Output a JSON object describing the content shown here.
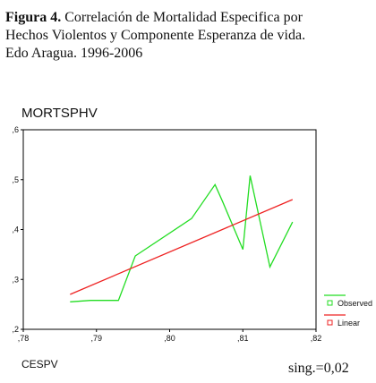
{
  "caption": {
    "label": "Figura 4.",
    "line1_rest": " Correlación de Mortalidad Especifica por",
    "line2": "Hechos Violentos  y Componente Esperanza de vida.",
    "line3": "Edo Aragua. 1996-2006"
  },
  "significance": "sing.=0,02",
  "colors": {
    "observed": "#22dd22",
    "linear": "#ee2222",
    "axis": "#000000"
  },
  "chart_data": {
    "type": "line",
    "ylabel": "MORTSPHV",
    "xlabel": "CESPV",
    "xlim": [
      0.78,
      0.82
    ],
    "ylim": [
      0.2,
      0.6
    ],
    "x_ticks": [
      {
        "value": 0.78,
        "label": ",78"
      },
      {
        "value": 0.79,
        "label": ",79"
      },
      {
        "value": 0.8,
        "label": ",80"
      },
      {
        "value": 0.81,
        "label": ",81"
      },
      {
        "value": 0.82,
        "label": ",82"
      }
    ],
    "y_ticks": [
      {
        "value": 0.2,
        "label": ",2"
      },
      {
        "value": 0.3,
        "label": ",3"
      },
      {
        "value": 0.4,
        "label": ",4"
      },
      {
        "value": 0.5,
        "label": ",5"
      },
      {
        "value": 0.6,
        "label": ",6"
      }
    ],
    "grid": false,
    "legend_position": "right",
    "series": [
      {
        "name": "Observed",
        "points": [
          {
            "x": 0.7864,
            "y": 0.255
          },
          {
            "x": 0.7892,
            "y": 0.258
          },
          {
            "x": 0.793,
            "y": 0.258
          },
          {
            "x": 0.7953,
            "y": 0.347
          },
          {
            "x": 0.803,
            "y": 0.422
          },
          {
            "x": 0.8062,
            "y": 0.49
          },
          {
            "x": 0.8072,
            "y": 0.457
          },
          {
            "x": 0.81,
            "y": 0.36
          },
          {
            "x": 0.811,
            "y": 0.508
          },
          {
            "x": 0.8137,
            "y": 0.325
          },
          {
            "x": 0.8168,
            "y": 0.415
          }
        ]
      },
      {
        "name": "Linear",
        "points": [
          {
            "x": 0.7864,
            "y": 0.27
          },
          {
            "x": 0.8168,
            "y": 0.46
          }
        ]
      }
    ]
  }
}
